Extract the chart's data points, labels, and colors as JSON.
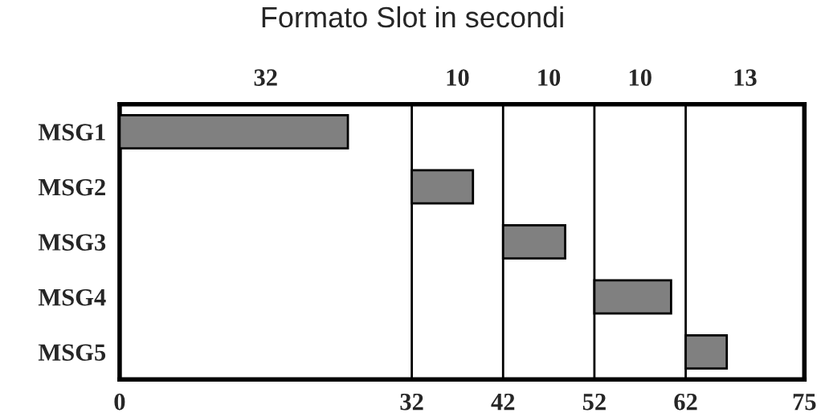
{
  "chart_data": {
    "type": "bar",
    "orientation": "horizontal",
    "title": "Formato Slot in secondi",
    "categories": [
      "MSG1",
      "MSG2",
      "MSG3",
      "MSG4",
      "MSG5"
    ],
    "base": [
      0,
      32,
      42,
      52,
      62
    ],
    "values": [
      25,
      6.7,
      6.8,
      8.4,
      4.5
    ],
    "color": "#808080",
    "xlim": [
      0,
      75
    ],
    "xticks": [
      0,
      32,
      42,
      52,
      62,
      75
    ],
    "annotations": [
      "32",
      "10",
      "10",
      "10",
      "13"
    ],
    "ref_lines": [
      {
        "axis": "x",
        "value": 32,
        "label": null,
        "color": "#000000"
      },
      {
        "axis": "x",
        "value": 42,
        "label": null,
        "color": "#000000"
      },
      {
        "axis": "x",
        "value": 52,
        "label": null,
        "color": "#000000"
      },
      {
        "axis": "x",
        "value": 62,
        "label": null,
        "color": "#000000"
      }
    ],
    "grid": false,
    "legend": false
  }
}
